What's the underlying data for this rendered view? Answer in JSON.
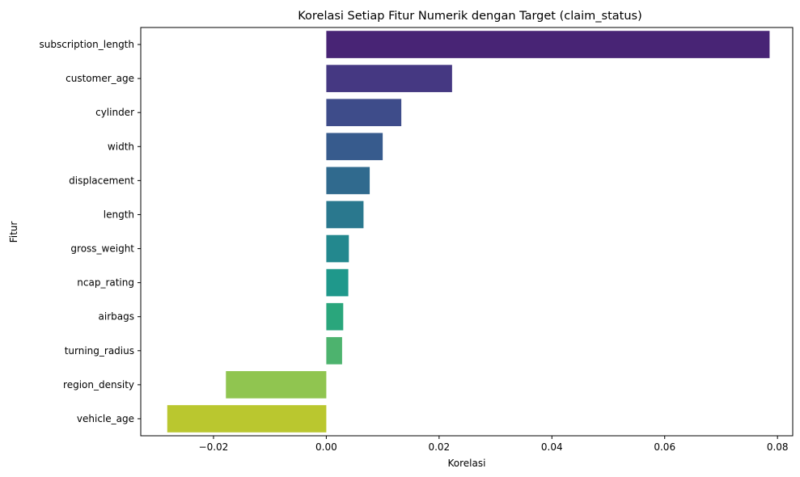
{
  "chart_data": {
    "type": "bar",
    "orientation": "horizontal",
    "title": "Korelasi Setiap Fitur Numerik dengan Target (claim_status)",
    "xlabel": "Korelasi",
    "ylabel": "Fitur",
    "xlim": [
      -0.0329,
      0.0827
    ],
    "grid": false,
    "legend": "none",
    "x_ticks": [
      -0.02,
      0.0,
      0.02,
      0.04,
      0.06,
      0.08
    ],
    "x_tick_labels": [
      "−0.02",
      "0.00",
      "0.02",
      "0.04",
      "0.06",
      "0.08"
    ],
    "categories": [
      "subscription_length",
      "customer_age",
      "cylinder",
      "width",
      "displacement",
      "length",
      "gross_weight",
      "ncap_rating",
      "airbags",
      "turning_radius",
      "region_density",
      "vehicle_age"
    ],
    "values": [
      0.0786,
      0.0223,
      0.0133,
      0.01,
      0.0077,
      0.0066,
      0.004,
      0.0039,
      0.003,
      0.0028,
      -0.0178,
      -0.0282
    ],
    "colors": [
      "#482475",
      "#453882",
      "#3e4c8a",
      "#375b8d",
      "#306a8e",
      "#2a788e",
      "#23888e",
      "#1f988b",
      "#2aa67c",
      "#4db36e",
      "#90c550",
      "#bac72f"
    ]
  }
}
